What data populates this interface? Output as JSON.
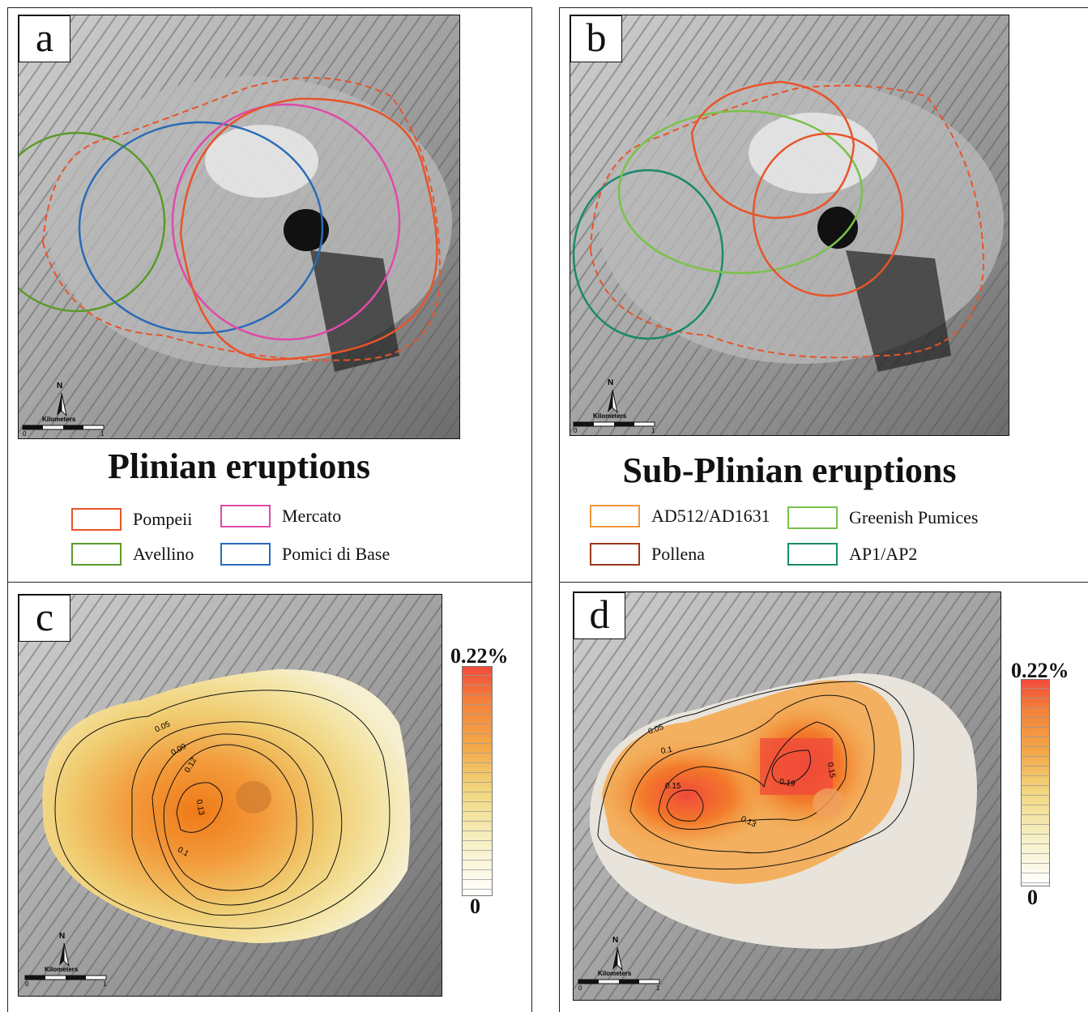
{
  "panels": {
    "a": {
      "letter": "a"
    },
    "b": {
      "letter": "b"
    },
    "c": {
      "letter": "c"
    },
    "d": {
      "letter": "d"
    }
  },
  "titles": {
    "plinian": "Plinian eruptions",
    "sub_plinian": "Sub-Plinian eruptions"
  },
  "legend_a": [
    {
      "label": "Pompeii",
      "color": "#e8542a"
    },
    {
      "label": "Mercato",
      "color": "#e04aa8"
    },
    {
      "label": "Avellino",
      "color": "#5a9a2a"
    },
    {
      "label": "Pomici di Base",
      "color": "#2a6ab8"
    }
  ],
  "legend_b": [
    {
      "label": "AD512/AD1631",
      "color": "#f0963a"
    },
    {
      "label": "Greenish Pumices",
      "color": "#7ac24a"
    },
    {
      "label": "Pollena",
      "color": "#9a3a1a"
    },
    {
      "label": "AP1/AP2",
      "color": "#1a8a6a"
    }
  ],
  "scalebar": {
    "north": "N",
    "units": "Kilometers",
    "min": "0",
    "max": "1"
  },
  "colorbar": {
    "max": "0.22%",
    "min": "0"
  },
  "contours_c": [
    "0.05",
    "0.09",
    "0.12",
    "0.13",
    "0.1"
  ],
  "contours_d": [
    "0.05",
    "0.1",
    "0.15",
    "0.19",
    "0.15",
    "0.13"
  ]
}
